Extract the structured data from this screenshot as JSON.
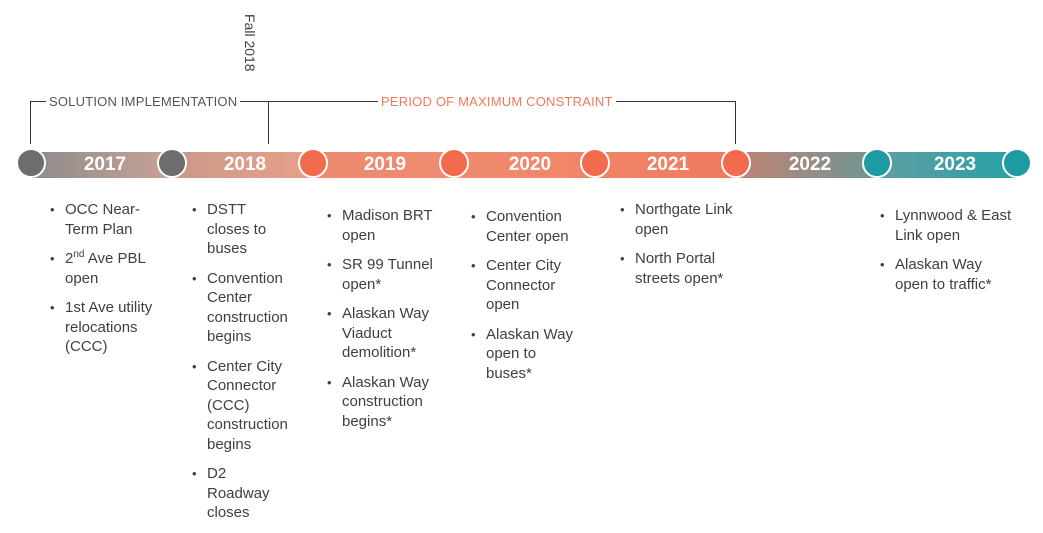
{
  "marker": {
    "text": "Fall 2018"
  },
  "phases": {
    "solution": "SOLUTION IMPLEMENTATION",
    "constraint": "PERIOD OF MAXIMUM CONSTRAINT"
  },
  "colors": {
    "gray_node": "#6d6d6d",
    "orange_node": "#f26b4e",
    "teal_node": "#1e9aa3",
    "phase_constraint_text": "#f07a5c"
  },
  "years": [
    "2017",
    "2018",
    "2019",
    "2020",
    "2021",
    "2022",
    "2023"
  ],
  "columns": [
    {
      "items": [
        {
          "text": "OCC Near-Term Plan"
        },
        {
          "pre": "2",
          "sup": "nd",
          "text": " Ave PBL open"
        },
        {
          "text": "1st Ave utility relocations (CCC)"
        }
      ]
    },
    {
      "items": [
        {
          "text": "DSTT closes to buses"
        },
        {
          "text": "Convention Center construction begins"
        },
        {
          "text": "Center City Connector (CCC) construction begins"
        },
        {
          "text": "D2 Roadway closes"
        }
      ]
    },
    {
      "items": [
        {
          "text": "Madison BRT open"
        },
        {
          "text": "SR 99 Tunnel open*"
        },
        {
          "text": "Alaskan Way Viaduct demolition*"
        },
        {
          "text": "Alaskan Way construction begins*"
        }
      ]
    },
    {
      "items": [
        {
          "text": "Convention Center open"
        },
        {
          "text": "Center City Connector open"
        },
        {
          "text": "Alaskan Way open to buses*"
        }
      ]
    },
    {
      "items": [
        {
          "text": "Northgate Link open"
        },
        {
          "text": "North Portal streets open*"
        }
      ]
    },
    {
      "items": []
    },
    {
      "items": [
        {
          "text": "Lynnwood & East Link open"
        },
        {
          "text": "Alaskan Way open to traffic*"
        }
      ]
    }
  ]
}
